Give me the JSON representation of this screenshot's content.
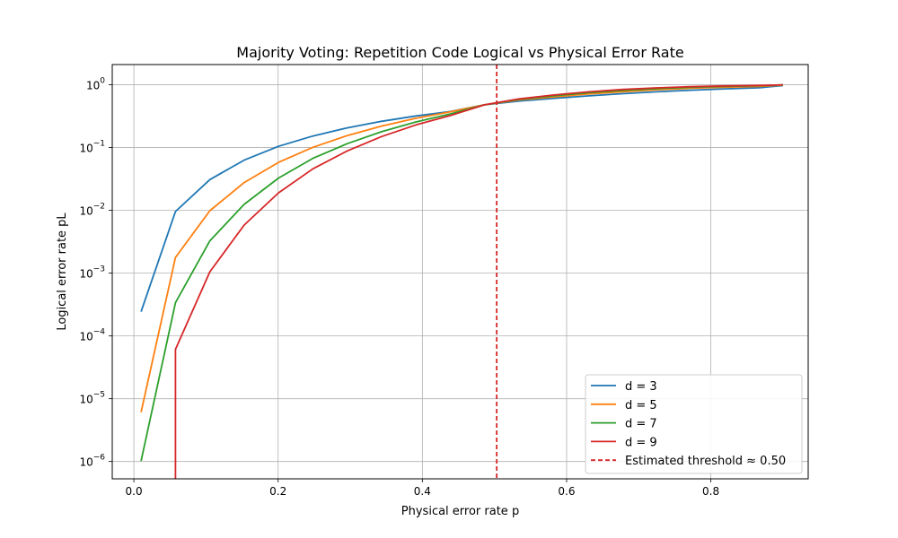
{
  "chart_data": {
    "type": "line",
    "title": "Majority Voting: Repetition Code Logical vs Physical Error Rate",
    "xlabel": "Physical error rate p",
    "ylabel": "Logical error rate pL",
    "xlim": [
      -0.03,
      0.935
    ],
    "ylim": [
      5.3e-07,
      2.1
    ],
    "yscale": "log",
    "grid": true,
    "legend_position": "bottom-right",
    "x_ticks": [
      0.0,
      0.2,
      0.4,
      0.6,
      0.8
    ],
    "x_tick_labels": [
      "0.0",
      "0.2",
      "0.4",
      "0.6",
      "0.8"
    ],
    "y_ticks": [
      {
        "value": 1,
        "base": "10",
        "exp": "0"
      },
      {
        "value": 0.1,
        "base": "10",
        "exp": "−1"
      },
      {
        "value": 0.01,
        "base": "10",
        "exp": "−2"
      },
      {
        "value": 0.001,
        "base": "10",
        "exp": "−3"
      },
      {
        "value": 0.0001,
        "base": "10",
        "exp": "−4"
      },
      {
        "value": 1e-05,
        "base": "10",
        "exp": "−5"
      },
      {
        "value": 1e-06,
        "base": "10",
        "exp": "−6"
      }
    ],
    "series": [
      {
        "name": "d = 3",
        "color": "#1f77b4",
        "x": [
          0.01,
          0.0576,
          0.1053,
          0.1529,
          0.2005,
          0.2482,
          0.2958,
          0.3434,
          0.3911,
          0.4387,
          0.4863,
          0.5339,
          0.5816,
          0.6292,
          0.6768,
          0.7245,
          0.7721,
          0.8197,
          0.8674,
          0.9
        ],
        "y": [
          0.000243,
          0.009569,
          0.03093,
          0.06301,
          0.1045,
          0.153,
          0.2063,
          0.2623,
          0.3191,
          0.3752,
          0.4795,
          0.5509,
          0.6077,
          0.6648,
          0.7204,
          0.7729,
          0.8208,
          0.8628,
          0.8981,
          0.972
        ]
      },
      {
        "name": "d = 5",
        "color": "#ff7f0e",
        "x": [
          0.01,
          0.0576,
          0.1053,
          0.1529,
          0.2005,
          0.2482,
          0.2958,
          0.3434,
          0.3911,
          0.4387,
          0.4863,
          0.5339,
          0.5816,
          0.6292,
          0.6768,
          0.7245,
          0.7721,
          0.8197,
          0.8674,
          0.9
        ],
        "y": [
          6.1e-06,
          0.00178,
          0.00988,
          0.02769,
          0.05817,
          0.1008,
          0.1555,
          0.2204,
          0.2934,
          0.3716,
          0.4795,
          0.5723,
          0.6411,
          0.7108,
          0.7754,
          0.8324,
          0.88,
          0.9178,
          0.9459,
          0.9914
        ]
      },
      {
        "name": "d = 7",
        "color": "#2ca02c",
        "x": [
          0.01,
          0.0576,
          0.1053,
          0.1529,
          0.2005,
          0.2482,
          0.2958,
          0.3434,
          0.3911,
          0.4387,
          0.4863,
          0.5339,
          0.5816,
          0.6292,
          0.6768,
          0.7245,
          0.7721,
          0.8197,
          0.8674,
          0.9
        ],
        "y": [
          1.02e-06,
          0.000338,
          0.00327,
          0.01245,
          0.03263,
          0.06726,
          0.1155,
          0.1788,
          0.2557,
          0.3426,
          0.4795,
          0.5851,
          0.6664,
          0.7448,
          0.8128,
          0.8688,
          0.9121,
          0.9437,
          0.9656,
          0.9972
        ]
      },
      {
        "name": "d = 9",
        "color": "#d62728",
        "x": [
          0.0576,
          0.0576,
          0.1053,
          0.1529,
          0.2005,
          0.2482,
          0.2958,
          0.3434,
          0.3911,
          0.4387,
          0.4863,
          0.5339,
          0.5816,
          0.6292,
          0.6768,
          0.7245,
          0.7721,
          0.8197,
          0.8674,
          0.9
        ],
        "y": [
          1e-07,
          6.11e-05,
          0.00105,
          0.00584,
          0.01902,
          0.04578,
          0.08845,
          0.1497,
          0.2295,
          0.3235,
          0.4795,
          0.5955,
          0.6857,
          0.7699,
          0.8405,
          0.8942,
          0.9327,
          0.9591,
          0.9763,
          0.9991
        ]
      }
    ],
    "threshold": {
      "name": "Estimated threshold ≈ 0.50",
      "x": 0.5031,
      "color": "#d62728",
      "style": "dashed"
    }
  }
}
